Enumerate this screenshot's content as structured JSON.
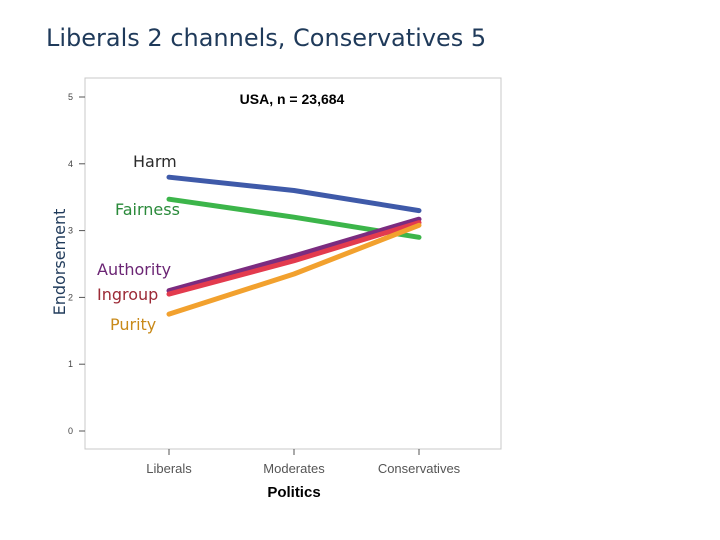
{
  "slide": {
    "title": "Liberals 2 channels, Conservatives 5"
  },
  "chart_data": {
    "type": "line",
    "title": "USA, n = 23,684",
    "xlabel": "Politics",
    "ylabel": "Endorsement",
    "categories": [
      "Liberals",
      "Moderates",
      "Conservatives"
    ],
    "ylim": [
      0,
      5
    ],
    "yticks": [
      0,
      1,
      2,
      3,
      4,
      5
    ],
    "grid": false,
    "series": [
      {
        "name": "Harm",
        "color": "#3f5aa9",
        "values": [
          3.8,
          3.6,
          3.3
        ]
      },
      {
        "name": "Fairness",
        "color": "#3cb54a",
        "values": [
          3.47,
          3.2,
          2.9
        ]
      },
      {
        "name": "Authority",
        "color": "#7b2c80",
        "values": [
          2.1,
          2.62,
          3.17
        ]
      },
      {
        "name": "Ingroup",
        "color": "#e33b4e",
        "values": [
          2.05,
          2.55,
          3.12
        ]
      },
      {
        "name": "Purity",
        "color": "#f2a12e",
        "values": [
          1.75,
          2.35,
          3.08
        ]
      }
    ]
  }
}
